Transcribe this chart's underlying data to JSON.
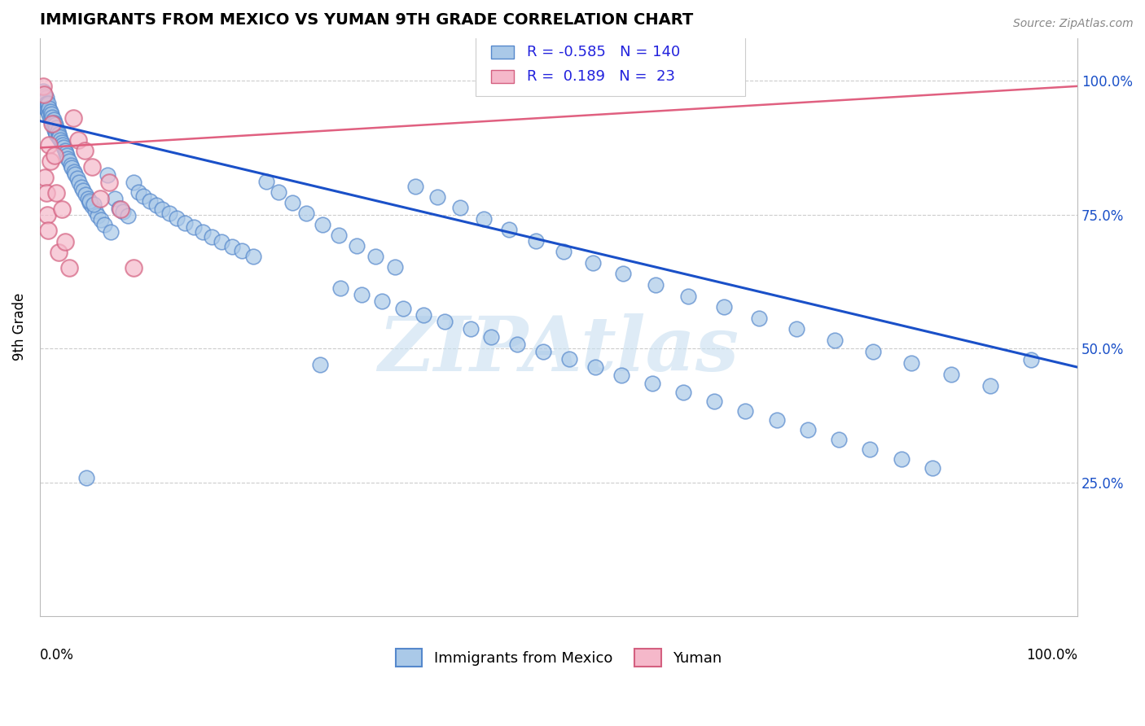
{
  "title": "IMMIGRANTS FROM MEXICO VS YUMAN 9TH GRADE CORRELATION CHART",
  "source": "Source: ZipAtlas.com",
  "ylabel": "9th Grade",
  "right_yticklabels": [
    "25.0%",
    "50.0%",
    "75.0%",
    "100.0%"
  ],
  "right_ytick_vals": [
    0.25,
    0.5,
    0.75,
    1.0
  ],
  "blue_R": -0.585,
  "blue_N": 140,
  "pink_R": 0.189,
  "pink_N": 23,
  "legend_label_blue": "Immigrants from Mexico",
  "legend_label_pink": "Yuman",
  "blue_dot_color": "#aac9e8",
  "blue_edge_color": "#5588cc",
  "pink_dot_color": "#f5b8ca",
  "pink_edge_color": "#d46080",
  "blue_line_color": "#1a50c8",
  "pink_line_color": "#e06080",
  "watermark_color": "#c8dff0",
  "watermark": "ZIPAtlas",
  "ylim_min": 0.0,
  "ylim_max": 1.08,
  "xlim_min": 0.0,
  "xlim_max": 1.0,
  "blue_line_x0": 0.0,
  "blue_line_y0": 0.925,
  "blue_line_x1": 1.0,
  "blue_line_y1": 0.465,
  "pink_line_x0": 0.0,
  "pink_line_y0": 0.875,
  "pink_line_x1": 1.0,
  "pink_line_y1": 0.99,
  "blue_x": [
    0.001,
    0.002,
    0.002,
    0.003,
    0.003,
    0.003,
    0.004,
    0.004,
    0.005,
    0.005,
    0.006,
    0.006,
    0.006,
    0.007,
    0.007,
    0.008,
    0.008,
    0.009,
    0.009,
    0.01,
    0.01,
    0.011,
    0.011,
    0.012,
    0.012,
    0.013,
    0.013,
    0.014,
    0.014,
    0.015,
    0.015,
    0.016,
    0.016,
    0.017,
    0.018,
    0.018,
    0.019,
    0.02,
    0.021,
    0.022,
    0.023,
    0.024,
    0.025,
    0.026,
    0.027,
    0.028,
    0.03,
    0.031,
    0.033,
    0.034,
    0.036,
    0.038,
    0.04,
    0.042,
    0.044,
    0.046,
    0.048,
    0.05,
    0.053,
    0.056,
    0.059,
    0.062,
    0.065,
    0.068,
    0.072,
    0.076,
    0.08,
    0.085,
    0.09,
    0.095,
    0.1,
    0.106,
    0.112,
    0.118,
    0.125,
    0.132,
    0.14,
    0.148,
    0.157,
    0.166,
    0.175,
    0.185,
    0.195,
    0.206,
    0.218,
    0.23,
    0.243,
    0.257,
    0.272,
    0.288,
    0.305,
    0.323,
    0.342,
    0.362,
    0.383,
    0.405,
    0.428,
    0.452,
    0.478,
    0.505,
    0.533,
    0.562,
    0.593,
    0.625,
    0.659,
    0.693,
    0.729,
    0.766,
    0.803,
    0.84,
    0.878,
    0.916,
    0.955,
    0.27,
    0.29,
    0.31,
    0.33,
    0.35,
    0.37,
    0.39,
    0.415,
    0.435,
    0.46,
    0.485,
    0.51,
    0.535,
    0.56,
    0.59,
    0.62,
    0.65,
    0.68,
    0.71,
    0.74,
    0.77,
    0.8,
    0.83,
    0.86,
    0.045,
    0.048,
    0.052
  ],
  "blue_y": [
    0.97,
    0.975,
    0.965,
    0.98,
    0.968,
    0.96,
    0.972,
    0.955,
    0.963,
    0.95,
    0.968,
    0.958,
    0.948,
    0.955,
    0.945,
    0.958,
    0.942,
    0.948,
    0.936,
    0.942,
    0.93,
    0.938,
    0.925,
    0.932,
    0.92,
    0.928,
    0.915,
    0.922,
    0.908,
    0.918,
    0.905,
    0.912,
    0.9,
    0.906,
    0.9,
    0.894,
    0.896,
    0.89,
    0.885,
    0.88,
    0.875,
    0.87,
    0.865,
    0.86,
    0.855,
    0.85,
    0.842,
    0.838,
    0.83,
    0.825,
    0.818,
    0.81,
    0.802,
    0.795,
    0.788,
    0.78,
    0.773,
    0.766,
    0.757,
    0.748,
    0.74,
    0.732,
    0.824,
    0.718,
    0.78,
    0.762,
    0.755,
    0.748,
    0.81,
    0.792,
    0.784,
    0.776,
    0.768,
    0.76,
    0.752,
    0.744,
    0.735,
    0.726,
    0.718,
    0.709,
    0.7,
    0.691,
    0.682,
    0.672,
    0.812,
    0.792,
    0.772,
    0.752,
    0.732,
    0.712,
    0.692,
    0.672,
    0.652,
    0.803,
    0.783,
    0.763,
    0.742,
    0.722,
    0.701,
    0.681,
    0.66,
    0.64,
    0.619,
    0.598,
    0.578,
    0.557,
    0.536,
    0.515,
    0.494,
    0.473,
    0.452,
    0.43,
    0.479,
    0.47,
    0.612,
    0.6,
    0.588,
    0.575,
    0.562,
    0.55,
    0.536,
    0.522,
    0.508,
    0.494,
    0.48,
    0.465,
    0.45,
    0.435,
    0.418,
    0.401,
    0.383,
    0.366,
    0.348,
    0.33,
    0.312,
    0.294,
    0.276,
    0.259,
    0.776,
    0.77
  ],
  "pink_x": [
    0.003,
    0.004,
    0.005,
    0.006,
    0.007,
    0.008,
    0.009,
    0.01,
    0.012,
    0.014,
    0.016,
    0.018,
    0.021,
    0.024,
    0.028,
    0.032,
    0.037,
    0.043,
    0.05,
    0.058,
    0.067,
    0.078,
    0.09
  ],
  "pink_y": [
    0.99,
    0.975,
    0.82,
    0.79,
    0.75,
    0.72,
    0.88,
    0.85,
    0.92,
    0.86,
    0.79,
    0.68,
    0.76,
    0.7,
    0.65,
    0.93,
    0.89,
    0.87,
    0.84,
    0.78,
    0.81,
    0.76,
    0.65
  ]
}
